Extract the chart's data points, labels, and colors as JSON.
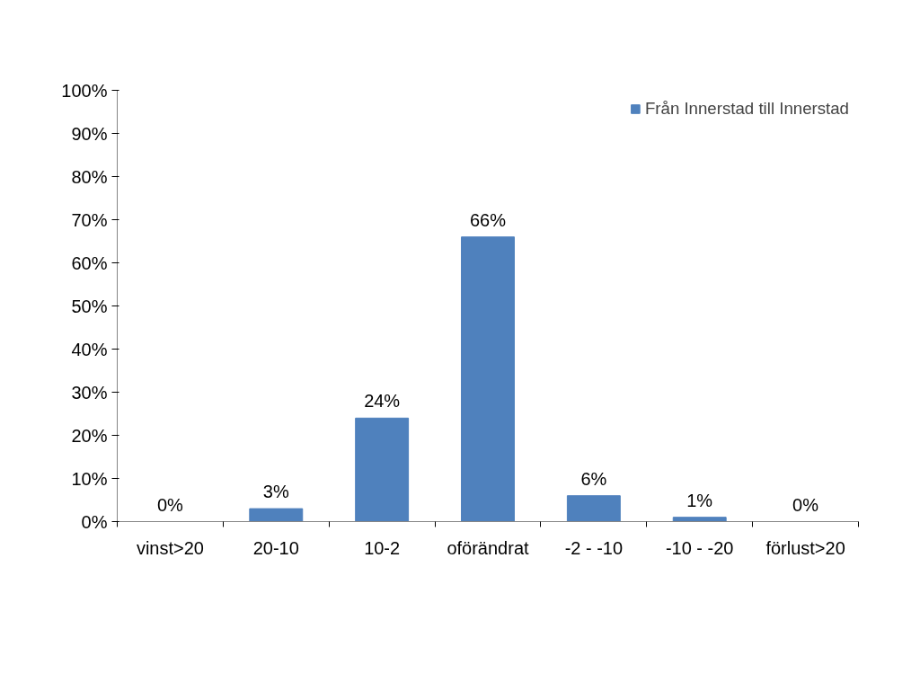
{
  "chart_data": {
    "type": "bar",
    "categories": [
      "vinst>20",
      "20-10",
      "10-2",
      "oförändrat",
      "-2 - -10",
      "-10 - -20",
      "förlust>20"
    ],
    "series": [
      {
        "name": "Från Innerstad till Innerstad",
        "color": "#4f81bd",
        "values": [
          0,
          3,
          24,
          66,
          6,
          1,
          0
        ],
        "value_labels": [
          "0%",
          "3%",
          "24%",
          "66%",
          "6%",
          "1%",
          "0%"
        ]
      }
    ],
    "ylim": [
      0,
      100
    ],
    "yticks": [
      {
        "value": 0,
        "label": "0%"
      },
      {
        "value": 10,
        "label": "10%"
      },
      {
        "value": 20,
        "label": "20%"
      },
      {
        "value": 30,
        "label": "30%"
      },
      {
        "value": 40,
        "label": "40%"
      },
      {
        "value": 50,
        "label": "50%"
      },
      {
        "value": 60,
        "label": "60%"
      },
      {
        "value": 70,
        "label": "70%"
      },
      {
        "value": 80,
        "label": "80%"
      },
      {
        "value": 90,
        "label": "90%"
      },
      {
        "value": 100,
        "label": "100%"
      }
    ],
    "grid": false,
    "legend": "top right"
  }
}
